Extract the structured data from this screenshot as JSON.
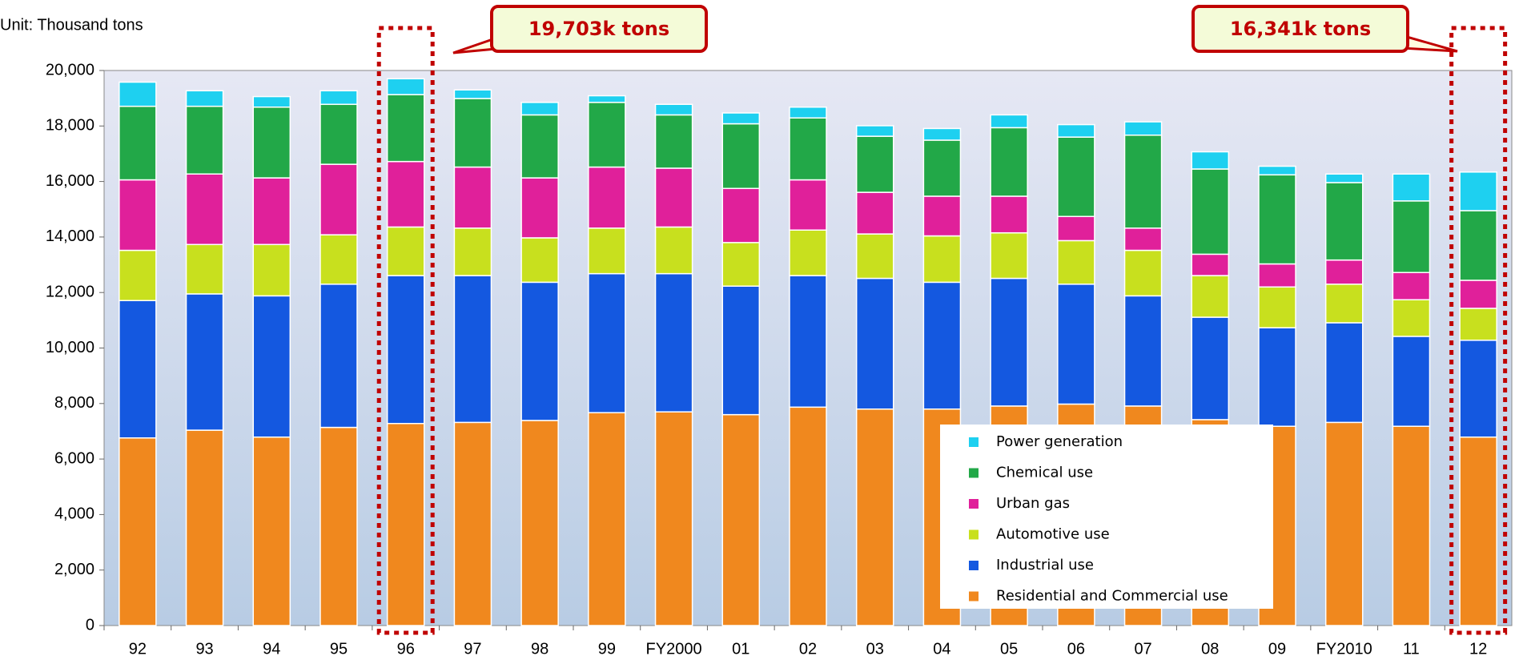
{
  "chart_data": {
    "type": "stacked_bar",
    "unit_label": "Unit: Thousand tons",
    "annotations": [
      "19,703k tons",
      "16,341k tons"
    ],
    "categories": [
      "92",
      "93",
      "94",
      "95",
      "96",
      "97",
      "98",
      "99",
      "FY2000",
      "01",
      "02",
      "03",
      "04",
      "05",
      "06",
      "07",
      "08",
      "09",
      "FY2010",
      "11",
      "12"
    ],
    "series": [
      {
        "name": "Residential and Commercial use",
        "color": "#f0881e",
        "values": [
          6760,
          7040,
          6790,
          7140,
          7280,
          7320,
          7390,
          7670,
          7700,
          7600,
          7870,
          7800,
          7800,
          7910,
          7980,
          7910,
          7420,
          7180,
          7320,
          7180,
          6790
        ]
      },
      {
        "name": "Industrial use",
        "color": "#1458e0",
        "values": [
          4950,
          4910,
          5090,
          5160,
          5330,
          5290,
          4980,
          5010,
          4980,
          4630,
          4740,
          4710,
          4570,
          4600,
          4320,
          3970,
          3690,
          3550,
          3590,
          3240,
          3490
        ]
      },
      {
        "name": "Automotive use",
        "color": "#c8e01e",
        "values": [
          1810,
          1780,
          1850,
          1780,
          1750,
          1710,
          1600,
          1640,
          1680,
          1570,
          1640,
          1600,
          1670,
          1640,
          1570,
          1640,
          1500,
          1470,
          1390,
          1320,
          1150
        ]
      },
      {
        "name": "Urban gas",
        "color": "#e0209a",
        "values": [
          2540,
          2540,
          2400,
          2540,
          2360,
          2200,
          2160,
          2200,
          2120,
          1950,
          1810,
          1500,
          1430,
          1320,
          870,
          800,
          770,
          830,
          870,
          980,
          1010
        ]
      },
      {
        "name": "Chemical use",
        "color": "#22a848",
        "values": [
          2650,
          2440,
          2550,
          2160,
          2410,
          2470,
          2270,
          2330,
          1920,
          2330,
          2230,
          2020,
          2020,
          2470,
          2860,
          3350,
          3070,
          3210,
          2790,
          2580,
          2510
        ]
      },
      {
        "name": "Power generation",
        "color": "#1ed0f0",
        "values": [
          870,
          560,
          380,
          490,
          573,
          310,
          450,
          240,
          380,
          390,
          390,
          380,
          420,
          460,
          450,
          480,
          620,
          310,
          310,
          970,
          1391
        ]
      }
    ],
    "ylim": [
      0,
      20000
    ],
    "yticks": [
      0,
      {
        "value": 2000,
        "label": "2,000"
      },
      {
        "value": 4000,
        "label": "4,000"
      },
      {
        "value": 6000,
        "label": "6,000"
      },
      {
        "value": 8000,
        "label": "8,000"
      },
      {
        "value": 10000,
        "label": "10,000"
      },
      {
        "value": 12000,
        "label": "12,000"
      },
      {
        "value": 14000,
        "label": "14,000"
      },
      {
        "value": 16000,
        "label": "16,000"
      },
      {
        "value": 18000,
        "label": "18,000"
      },
      {
        "value": 20000,
        "label": "20,000"
      }
    ]
  }
}
